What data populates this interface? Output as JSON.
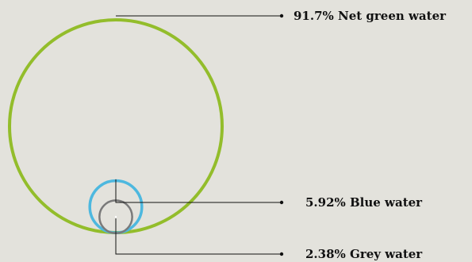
{
  "chart_data": {
    "type": "nested-circles",
    "series": [
      {
        "name": "Net green water",
        "value": 91.7,
        "label": "91.7% Net green water",
        "color": "#93bd2b"
      },
      {
        "name": "Blue water",
        "value": 5.92,
        "label": "5.92% Blue water",
        "color": "#4db8df"
      },
      {
        "name": "Grey water",
        "value": 2.38,
        "label": "2.38% Grey water",
        "color": "#7a7a7a"
      }
    ],
    "legend": "right",
    "grid": false
  },
  "colors": {
    "background": "#e3e2dc",
    "leader_line": "#111111"
  }
}
